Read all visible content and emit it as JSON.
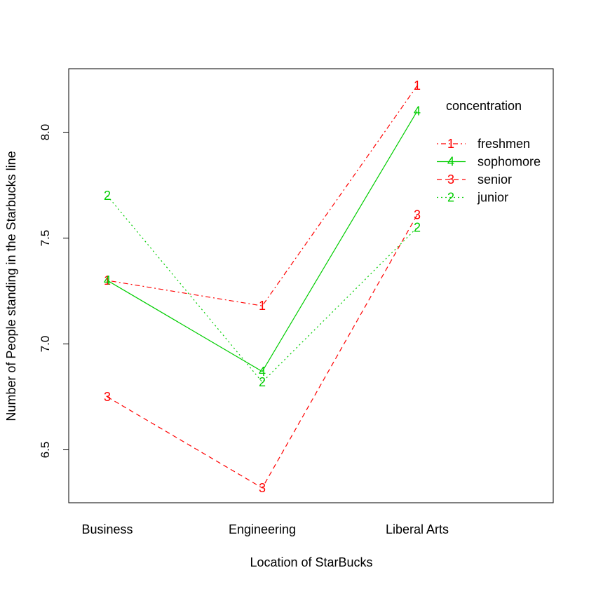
{
  "chart_data": {
    "type": "line",
    "title": "",
    "xlabel": "Location of StarBucks",
    "ylabel": "Number of People standing in the Starbucks line",
    "categories": [
      "Business",
      "Engineering",
      "Liberal Arts"
    ],
    "ylim": [
      6.25,
      8.3
    ],
    "yticks": [
      "6.5",
      "7.0",
      "7.5",
      "8.0"
    ],
    "grid": false,
    "legend": {
      "title": "concentration",
      "placement": "top-right"
    },
    "series": [
      {
        "name": "freshmen",
        "symbol": "1",
        "color": "#ff0000",
        "dash": "dotdash",
        "values": [
          7.3,
          7.18,
          8.22
        ]
      },
      {
        "name": "sophomore",
        "symbol": "4",
        "color": "#00cd00",
        "dash": "solid",
        "values": [
          7.3,
          6.87,
          8.1
        ]
      },
      {
        "name": "senior",
        "symbol": "3",
        "color": "#ff0000",
        "dash": "dashed",
        "values": [
          6.75,
          6.32,
          7.61
        ]
      },
      {
        "name": "junior",
        "symbol": "2",
        "color": "#00cd00",
        "dash": "dotted",
        "values": [
          7.7,
          6.82,
          7.55
        ]
      }
    ]
  }
}
